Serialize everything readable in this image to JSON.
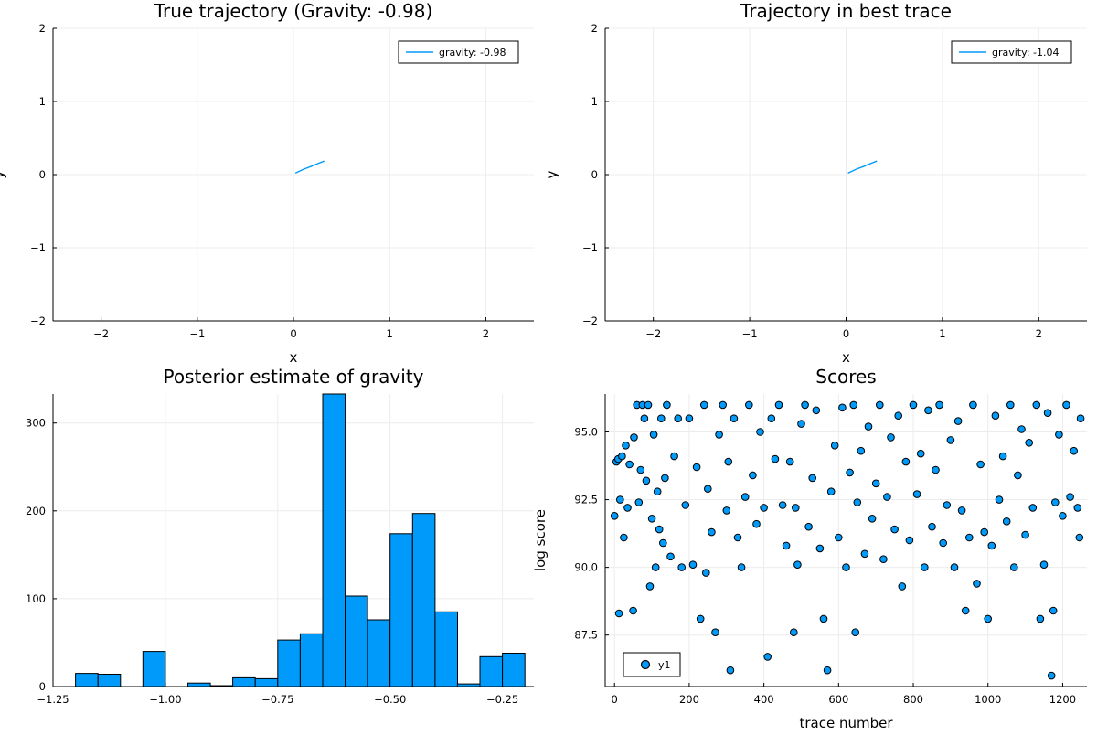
{
  "chart_data": [
    {
      "type": "line",
      "title": "True trajectory (Gravity: -0.98)",
      "xlabel": "x",
      "ylabel": "y",
      "xlim": [
        -2.5,
        2.5
      ],
      "ylim": [
        -2,
        2
      ],
      "xticks": [
        -2,
        -1,
        0,
        1,
        2
      ],
      "yticks": [
        -2,
        -1,
        0,
        1,
        2
      ],
      "xtick_labels": [
        "−2",
        "−1",
        "0",
        "1",
        "2"
      ],
      "ytick_labels": [
        "−2",
        "−1",
        "0",
        "1",
        "2"
      ],
      "grid": true,
      "legend_position": "top-right",
      "series": [
        {
          "name": "gravity: -0.98",
          "color": "#009AFA",
          "x": [
            0.02,
            0.1,
            0.18,
            0.26,
            0.32
          ],
          "y": [
            0.02,
            0.07,
            0.11,
            0.155,
            0.185
          ]
        }
      ]
    },
    {
      "type": "line",
      "title": "Trajectory in best trace",
      "xlabel": "x",
      "ylabel": "y",
      "xlim": [
        -2.5,
        2.5
      ],
      "ylim": [
        -2,
        2
      ],
      "xticks": [
        -2,
        -1,
        0,
        1,
        2
      ],
      "yticks": [
        -2,
        -1,
        0,
        1,
        2
      ],
      "xtick_labels": [
        "−2",
        "−1",
        "0",
        "1",
        "2"
      ],
      "ytick_labels": [
        "−2",
        "−1",
        "0",
        "1",
        "2"
      ],
      "grid": true,
      "legend_position": "top-right",
      "series": [
        {
          "name": "gravity: -1.04",
          "color": "#009AFA",
          "x": [
            0.02,
            0.1,
            0.18,
            0.26,
            0.32
          ],
          "y": [
            0.02,
            0.07,
            0.11,
            0.155,
            0.185
          ]
        }
      ]
    },
    {
      "type": "bar",
      "title": "Posterior estimate of gravity",
      "xlabel": "",
      "ylabel": "",
      "xlim": [
        -1.25,
        -0.18
      ],
      "ylim": [
        0,
        333
      ],
      "xticks": [
        -1.25,
        -1.0,
        -0.75,
        -0.5,
        -0.25
      ],
      "yticks": [
        0,
        100,
        200,
        300
      ],
      "xtick_labels": [
        "−1.25",
        "−1.00",
        "−0.75",
        "−0.50",
        "−0.25"
      ],
      "ytick_labels": [
        "0",
        "100",
        "200",
        "300"
      ],
      "grid": true,
      "color": "#009AFA",
      "bin_width": 0.05,
      "bin_starts": [
        -1.2,
        -1.15,
        -1.1,
        -1.05,
        -1.0,
        -0.95,
        -0.9,
        -0.85,
        -0.8,
        -0.75,
        -0.7,
        -0.65,
        -0.6,
        -0.55,
        -0.5,
        -0.45,
        -0.4,
        -0.35,
        -0.3,
        -0.25
      ],
      "values": [
        15,
        14,
        0,
        40,
        0,
        4,
        1,
        10,
        9,
        53,
        60,
        333,
        103,
        76,
        174,
        197,
        85,
        3,
        34,
        38
      ]
    },
    {
      "type": "scatter",
      "title": "Scores",
      "xlabel": "trace number",
      "ylabel": "log score",
      "xlim": [
        -25,
        1265
      ],
      "ylim": [
        85.6,
        96.4
      ],
      "xticks": [
        0,
        200,
        400,
        600,
        800,
        1000,
        1200
      ],
      "yticks": [
        87.5,
        90.0,
        92.5,
        95.0
      ],
      "xtick_labels": [
        "0",
        "200",
        "400",
        "600",
        "800",
        "1000",
        "1200"
      ],
      "ytick_labels": [
        "87.5",
        "90.0",
        "92.5",
        "95.0"
      ],
      "grid": true,
      "legend_position": "bottom-left",
      "series": [
        {
          "name": "y1",
          "color": "#009AFA",
          "n_points": 1250,
          "points": [
            [
              0,
              91.9
            ],
            [
              5,
              93.9
            ],
            [
              10,
              94.0
            ],
            [
              12,
              88.3
            ],
            [
              15,
              92.5
            ],
            [
              20,
              94.1
            ],
            [
              25,
              91.1
            ],
            [
              30,
              94.5
            ],
            [
              35,
              92.2
            ],
            [
              40,
              93.8
            ],
            [
              50,
              88.4
            ],
            [
              52,
              94.8
            ],
            [
              60,
              96.0
            ],
            [
              65,
              92.4
            ],
            [
              70,
              93.6
            ],
            [
              75,
              96.0
            ],
            [
              80,
              95.5
            ],
            [
              85,
              93.2
            ],
            [
              90,
              96.0
            ],
            [
              95,
              89.3
            ],
            [
              100,
              91.8
            ],
            [
              105,
              94.9
            ],
            [
              110,
              90.0
            ],
            [
              115,
              92.8
            ],
            [
              120,
              91.4
            ],
            [
              125,
              95.5
            ],
            [
              130,
              90.9
            ],
            [
              135,
              93.3
            ],
            [
              140,
              96.0
            ],
            [
              150,
              90.4
            ],
            [
              160,
              94.1
            ],
            [
              170,
              95.5
            ],
            [
              180,
              90.0
            ],
            [
              190,
              92.3
            ],
            [
              200,
              95.5
            ],
            [
              210,
              90.1
            ],
            [
              220,
              93.7
            ],
            [
              230,
              88.1
            ],
            [
              240,
              96.0
            ],
            [
              245,
              89.8
            ],
            [
              250,
              92.9
            ],
            [
              260,
              91.3
            ],
            [
              270,
              87.6
            ],
            [
              280,
              94.9
            ],
            [
              290,
              96.0
            ],
            [
              300,
              92.1
            ],
            [
              305,
              93.9
            ],
            [
              310,
              86.2
            ],
            [
              320,
              95.5
            ],
            [
              330,
              91.1
            ],
            [
              340,
              90.0
            ],
            [
              350,
              92.6
            ],
            [
              360,
              96.0
            ],
            [
              370,
              93.4
            ],
            [
              380,
              91.6
            ],
            [
              390,
              95.0
            ],
            [
              400,
              92.2
            ],
            [
              410,
              86.7
            ],
            [
              420,
              95.5
            ],
            [
              430,
              94.0
            ],
            [
              440,
              96.0
            ],
            [
              450,
              92.3
            ],
            [
              460,
              90.8
            ],
            [
              470,
              93.9
            ],
            [
              480,
              87.6
            ],
            [
              485,
              92.2
            ],
            [
              490,
              90.1
            ],
            [
              500,
              95.3
            ],
            [
              510,
              96.0
            ],
            [
              520,
              91.5
            ],
            [
              530,
              93.3
            ],
            [
              540,
              95.8
            ],
            [
              550,
              90.7
            ],
            [
              560,
              88.1
            ],
            [
              570,
              86.2
            ],
            [
              580,
              92.8
            ],
            [
              590,
              94.5
            ],
            [
              600,
              91.1
            ],
            [
              610,
              95.9
            ],
            [
              620,
              90.0
            ],
            [
              630,
              93.5
            ],
            [
              640,
              96.0
            ],
            [
              645,
              87.6
            ],
            [
              650,
              92.4
            ],
            [
              660,
              94.3
            ],
            [
              670,
              90.5
            ],
            [
              680,
              95.2
            ],
            [
              690,
              91.8
            ],
            [
              700,
              93.1
            ],
            [
              710,
              96.0
            ],
            [
              720,
              90.3
            ],
            [
              730,
              92.6
            ],
            [
              740,
              94.8
            ],
            [
              750,
              91.4
            ],
            [
              760,
              95.6
            ],
            [
              770,
              89.3
            ],
            [
              780,
              93.9
            ],
            [
              790,
              91.0
            ],
            [
              800,
              96.0
            ],
            [
              810,
              92.7
            ],
            [
              820,
              94.2
            ],
            [
              830,
              90.0
            ],
            [
              840,
              95.8
            ],
            [
              850,
              91.5
            ],
            [
              860,
              93.6
            ],
            [
              870,
              96.0
            ],
            [
              880,
              90.9
            ],
            [
              890,
              92.3
            ],
            [
              900,
              94.7
            ],
            [
              910,
              90.0
            ],
            [
              920,
              95.4
            ],
            [
              930,
              92.1
            ],
            [
              940,
              88.4
            ],
            [
              950,
              91.1
            ],
            [
              960,
              96.0
            ],
            [
              970,
              89.4
            ],
            [
              980,
              93.8
            ],
            [
              990,
              91.3
            ],
            [
              1000,
              88.1
            ],
            [
              1010,
              90.8
            ],
            [
              1020,
              95.6
            ],
            [
              1030,
              92.5
            ],
            [
              1040,
              94.1
            ],
            [
              1050,
              91.7
            ],
            [
              1060,
              96.0
            ],
            [
              1070,
              90.0
            ],
            [
              1080,
              93.4
            ],
            [
              1090,
              95.1
            ],
            [
              1100,
              91.2
            ],
            [
              1110,
              94.6
            ],
            [
              1120,
              92.2
            ],
            [
              1130,
              96.0
            ],
            [
              1140,
              88.1
            ],
            [
              1150,
              90.1
            ],
            [
              1160,
              95.7
            ],
            [
              1170,
              86.0
            ],
            [
              1175,
              88.4
            ],
            [
              1180,
              92.4
            ],
            [
              1190,
              94.9
            ],
            [
              1200,
              91.9
            ],
            [
              1210,
              96.0
            ],
            [
              1220,
              92.6
            ],
            [
              1230,
              94.3
            ],
            [
              1240,
              92.2
            ],
            [
              1245,
              91.1
            ],
            [
              1248,
              95.5
            ]
          ]
        }
      ]
    }
  ]
}
